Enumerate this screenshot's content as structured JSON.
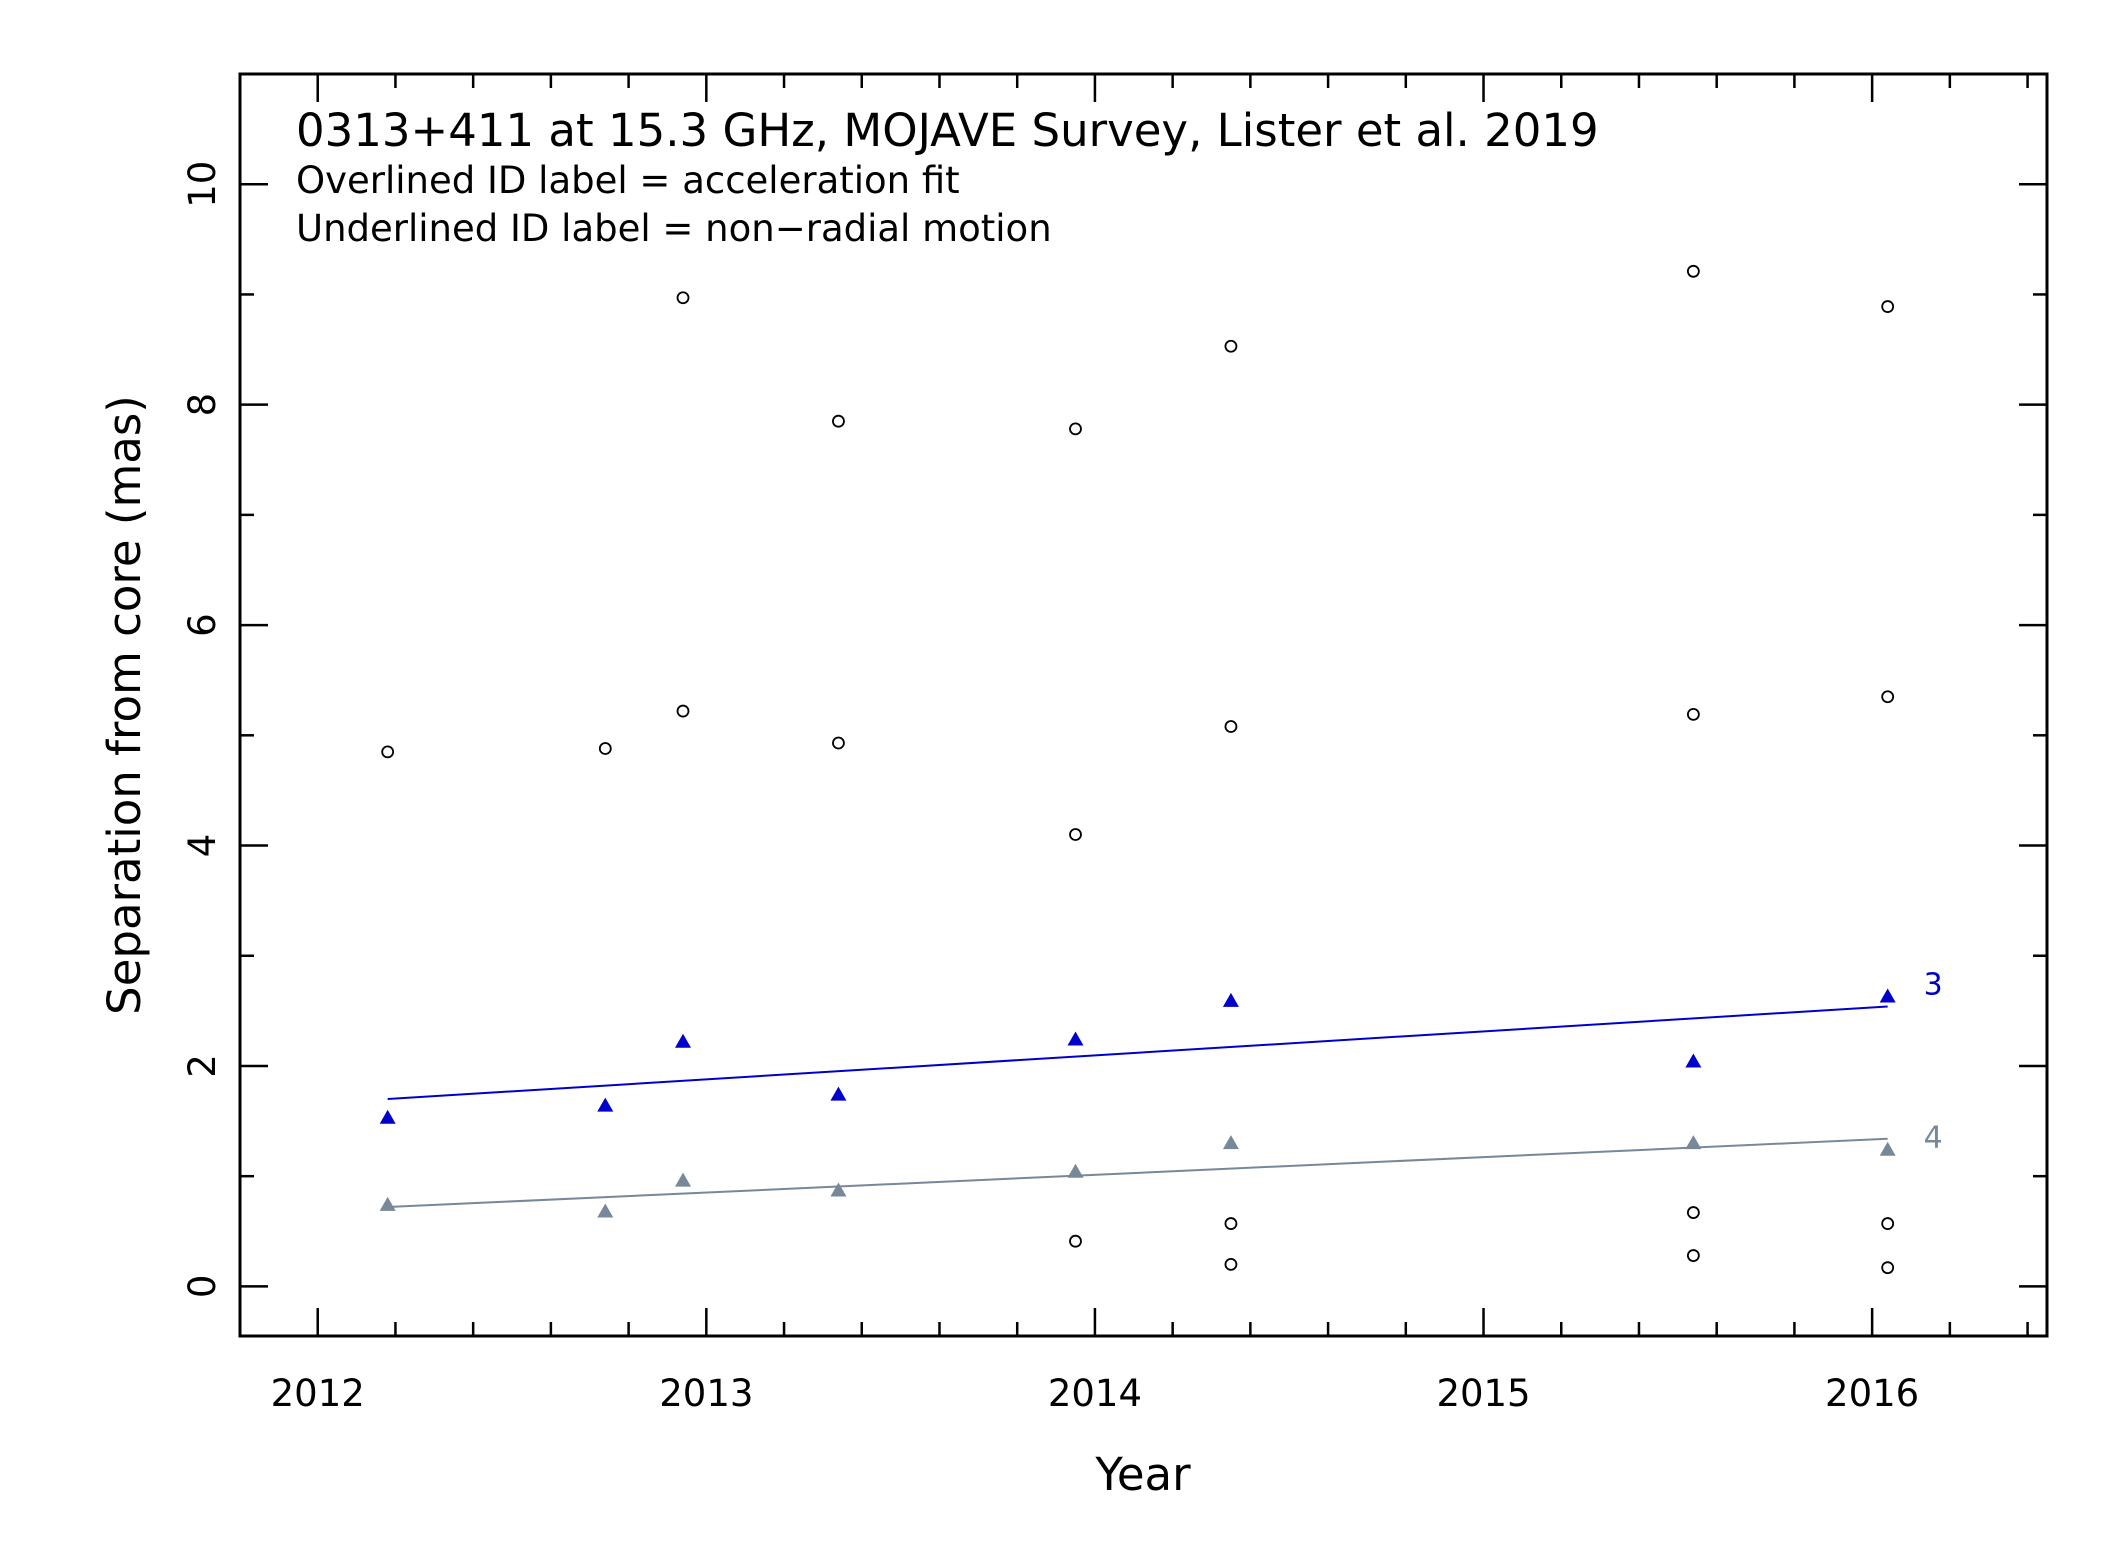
{
  "chart_data": {
    "type": "scatter",
    "title": "0313+411 at 15.3 GHz, MOJAVE Survey, Lister et al. 2019",
    "subtitles": [
      "Overlined ID label = acceleration fit",
      "Underlined ID label = non−radial motion"
    ],
    "xlabel": "Year",
    "ylabel": "Separation from core (mas)",
    "xlim": [
      2011.8,
      2016.45
    ],
    "ylim": [
      -0.45,
      11.0
    ],
    "x_ticks": [
      "2012",
      "2013",
      "2014",
      "2015",
      "2016"
    ],
    "y_ticks": [
      "0",
      "2",
      "4",
      "6",
      "8",
      "10"
    ],
    "grid": false,
    "series": [
      {
        "name": "3",
        "color": "#0000cc",
        "marker": "triangle",
        "x": [
          2012.18,
          2012.74,
          2012.94,
          2013.34,
          2013.95,
          2014.35,
          2015.54,
          2016.04
        ],
        "y": [
          1.53,
          1.64,
          2.22,
          1.74,
          2.24,
          2.59,
          2.04,
          2.63
        ],
        "fit": {
          "x": [
            2012.18,
            2016.04
          ],
          "y": [
            1.7,
            2.54
          ]
        }
      },
      {
        "name": "4",
        "color": "#778899",
        "marker": "triangle",
        "x": [
          2012.18,
          2012.74,
          2012.94,
          2013.34,
          2013.95,
          2014.35,
          2015.54,
          2016.04
        ],
        "y": [
          0.74,
          0.68,
          0.96,
          0.87,
          1.04,
          1.3,
          1.3,
          1.24
        ],
        "fit": {
          "x": [
            2012.18,
            2016.04
          ],
          "y": [
            0.72,
            1.34
          ]
        }
      },
      {
        "color": "#000000",
        "marker": "open-circle",
        "x": [
          2012.18,
          2012.74,
          2012.94,
          2012.94,
          2013.34,
          2013.34,
          2013.95,
          2013.95,
          2013.95,
          2014.35,
          2014.35,
          2014.35,
          2014.35,
          2015.54,
          2015.54,
          2015.54,
          2015.54,
          2016.04,
          2016.04,
          2016.04,
          2016.04
        ],
        "y": [
          4.85,
          4.88,
          5.22,
          8.97,
          4.93,
          7.85,
          4.1,
          7.78,
          0.41,
          5.08,
          8.53,
          0.57,
          0.2,
          9.21,
          5.19,
          0.67,
          0.28,
          8.89,
          5.35,
          0.57,
          0.17
        ]
      }
    ]
  }
}
